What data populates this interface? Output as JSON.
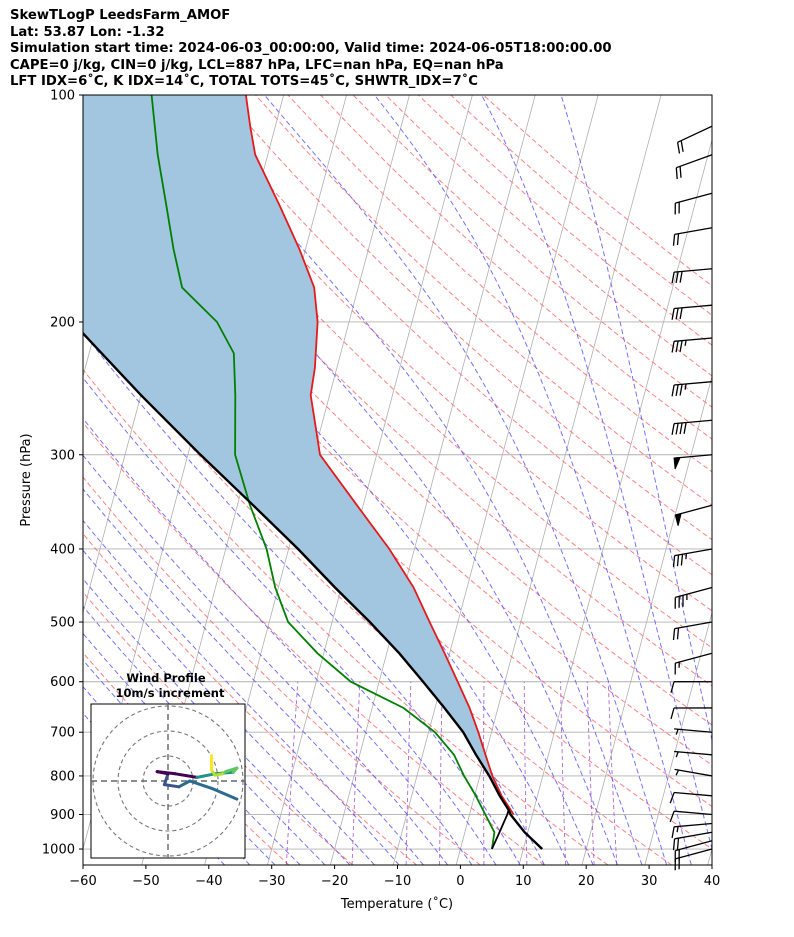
{
  "header": {
    "line1": "SkewTLogP LeedsFarm_AMOF",
    "line2": "Lat: 53.87   Lon: -1.32",
    "line3": "Simulation start time: 2024-06-03_00:00:00, Valid time: 2024-06-05T18:00:00.00",
    "line4": "CAPE=0 j/kg, CIN=0 j/kg, LCL=887 hPa, LFC=nan hPa, EQ=nan hPa",
    "line5": "LFT IDX=6˚C, K IDX=14˚C, TOTAL TOTS=45˚C, SHWTR_IDX=7˚C"
  },
  "chart_data": {
    "type": "skew-t",
    "xlabel": "Temperature (˚C)",
    "ylabel": "Pressure (hPa)",
    "xlim": [
      -60,
      40
    ],
    "ylim": [
      1050,
      100
    ],
    "x_ticks": [
      -60,
      -50,
      -40,
      -30,
      -20,
      -10,
      0,
      10,
      20,
      30,
      40
    ],
    "x_tick_labels": [
      "−60",
      "−50",
      "−40",
      "−30",
      "−20",
      "−10",
      "0",
      "10",
      "20",
      "30",
      "40"
    ],
    "y_ticks": [
      1000,
      900,
      800,
      700,
      600,
      500,
      400,
      300,
      200,
      100
    ],
    "y_tick_labels": [
      "1000",
      "900",
      "800",
      "700",
      "600",
      "500",
      "400",
      "300",
      "200",
      "100"
    ],
    "grid": true,
    "series": [
      {
        "name": "",
        "color": "#e41a1c",
        "values": [
          {
            "p": 900,
            "t": 7.0
          },
          {
            "p": 850,
            "t": 4.3
          },
          {
            "p": 800,
            "t": 2.0
          },
          {
            "p": 750,
            "t": 0.0
          },
          {
            "p": 700,
            "t": -2.1
          },
          {
            "p": 650,
            "t": -4.5
          },
          {
            "p": 600,
            "t": -7.5
          },
          {
            "p": 550,
            "t": -10.8
          },
          {
            "p": 500,
            "t": -14.5
          },
          {
            "p": 450,
            "t": -18.5
          },
          {
            "p": 400,
            "t": -24.0
          },
          {
            "p": 350,
            "t": -31.0
          },
          {
            "p": 300,
            "t": -39.0
          },
          {
            "p": 250,
            "t": -43.0
          },
          {
            "p": 230,
            "t": -43.5
          },
          {
            "p": 200,
            "t": -45.0
          },
          {
            "p": 180,
            "t": -47.0
          },
          {
            "p": 160,
            "t": -51.0
          },
          {
            "p": 140,
            "t": -56.0
          },
          {
            "p": 120,
            "t": -62.0
          },
          {
            "p": 110,
            "t": -64.0
          },
          {
            "p": 100,
            "t": -66.0
          }
        ]
      },
      {
        "name": "",
        "color": "#008000",
        "values": [
          {
            "p": 1000,
            "t": 5.0
          },
          {
            "p": 950,
            "t": 4.7
          },
          {
            "p": 900,
            "t": 2.5
          },
          {
            "p": 850,
            "t": 0.2
          },
          {
            "p": 800,
            "t": -2.5
          },
          {
            "p": 750,
            "t": -5.0
          },
          {
            "p": 700,
            "t": -9.0
          },
          {
            "p": 650,
            "t": -15.0
          },
          {
            "p": 600,
            "t": -24.5
          },
          {
            "p": 550,
            "t": -31.0
          },
          {
            "p": 500,
            "t": -37.0
          },
          {
            "p": 450,
            "t": -40.5
          },
          {
            "p": 400,
            "t": -43.5
          },
          {
            "p": 350,
            "t": -48.0
          },
          {
            "p": 300,
            "t": -52.5
          },
          {
            "p": 250,
            "t": -55.0
          },
          {
            "p": 220,
            "t": -57.0
          },
          {
            "p": 200,
            "t": -61.0
          },
          {
            "p": 180,
            "t": -68.0
          },
          {
            "p": 160,
            "t": -71.0
          },
          {
            "p": 140,
            "t": -74.0
          },
          {
            "p": 120,
            "t": -77.5
          },
          {
            "p": 100,
            "t": -81.0
          }
        ]
      },
      {
        "name": "",
        "color": "#000000",
        "values": [
          {
            "p": 1000,
            "t": 13.0
          },
          {
            "p": 950,
            "t": 9.5
          },
          {
            "p": 900,
            "t": 6.5
          },
          {
            "p": 887,
            "t": 6.0
          },
          {
            "p": 850,
            "t": 4.0
          },
          {
            "p": 800,
            "t": 1.5
          },
          {
            "p": 750,
            "t": -1.5
          },
          {
            "p": 700,
            "t": -4.5
          },
          {
            "p": 650,
            "t": -8.5
          },
          {
            "p": 600,
            "t": -13.0
          },
          {
            "p": 550,
            "t": -18.0
          },
          {
            "p": 500,
            "t": -24.0
          },
          {
            "p": 450,
            "t": -31.0
          },
          {
            "p": 400,
            "t": -38.5
          },
          {
            "p": 350,
            "t": -47.5
          },
          {
            "p": 300,
            "t": -58.0
          },
          {
            "p": 250,
            "t": -70.0
          },
          {
            "p": 200,
            "t": -84.0
          },
          {
            "p": 150,
            "t": -102.0
          },
          {
            "p": 120,
            "t": -117.0
          },
          {
            "p": 100,
            "t": -128.0
          }
        ]
      },
      {
        "name": "",
        "color": "#000000",
        "values": [
          {
            "p": 1000,
            "t": 5.0
          },
          {
            "p": 950,
            "t": 5.5
          },
          {
            "p": 900,
            "t": 6.0
          },
          {
            "p": 887,
            "t": 6.0
          }
        ]
      }
    ],
    "shaded_region": {
      "color": "#a3c6e0",
      "between": [
        "red profile",
        "black parcel"
      ]
    },
    "wind_barbs": [
      {
        "p": 1000,
        "speed_kt": 20,
        "dir_deg": 255
      },
      {
        "p": 975,
        "speed_kt": 20,
        "dir_deg": 255
      },
      {
        "p": 950,
        "speed_kt": 20,
        "dir_deg": 260
      },
      {
        "p": 925,
        "speed_kt": 15,
        "dir_deg": 265
      },
      {
        "p": 900,
        "speed_kt": 10,
        "dir_deg": 275
      },
      {
        "p": 850,
        "speed_kt": 10,
        "dir_deg": 275
      },
      {
        "p": 800,
        "speed_kt": 5,
        "dir_deg": 280
      },
      {
        "p": 750,
        "speed_kt": 5,
        "dir_deg": 275
      },
      {
        "p": 700,
        "speed_kt": 5,
        "dir_deg": 275
      },
      {
        "p": 650,
        "speed_kt": 10,
        "dir_deg": 270
      },
      {
        "p": 600,
        "speed_kt": 10,
        "dir_deg": 270
      },
      {
        "p": 550,
        "speed_kt": 15,
        "dir_deg": 255
      },
      {
        "p": 500,
        "speed_kt": 20,
        "dir_deg": 260
      },
      {
        "p": 450,
        "speed_kt": 35,
        "dir_deg": 255
      },
      {
        "p": 400,
        "speed_kt": 35,
        "dir_deg": 260
      },
      {
        "p": 350,
        "speed_kt": 50,
        "dir_deg": 255
      },
      {
        "p": 300,
        "speed_kt": 50,
        "dir_deg": 265
      },
      {
        "p": 270,
        "speed_kt": 40,
        "dir_deg": 265
      },
      {
        "p": 240,
        "speed_kt": 35,
        "dir_deg": 265
      },
      {
        "p": 210,
        "speed_kt": 35,
        "dir_deg": 265
      },
      {
        "p": 190,
        "speed_kt": 30,
        "dir_deg": 265
      },
      {
        "p": 170,
        "speed_kt": 30,
        "dir_deg": 265
      },
      {
        "p": 150,
        "speed_kt": 20,
        "dir_deg": 260
      },
      {
        "p": 135,
        "speed_kt": 20,
        "dir_deg": 255
      },
      {
        "p": 120,
        "speed_kt": 20,
        "dir_deg": 250
      },
      {
        "p": 110,
        "speed_kt": 20,
        "dir_deg": 245
      }
    ],
    "hodograph": {
      "title": "Wind Profile",
      "subtitle": "10m/s increment",
      "ring_increment_ms": 10,
      "rings": 3,
      "points_ms": [
        {
          "u": 9.5,
          "v": -2.5
        },
        {
          "u": 6.0,
          "v": -1.0
        },
        {
          "u": 3.0,
          "v": 0.0
        },
        {
          "u": 1.5,
          "v": -0.8
        },
        {
          "u": -0.5,
          "v": -0.5
        },
        {
          "u": 0.0,
          "v": 1.0
        },
        {
          "u": -1.5,
          "v": 1.3
        },
        {
          "u": 1.0,
          "v": 1.0
        },
        {
          "u": 4.0,
          "v": 0.5
        },
        {
          "u": 6.5,
          "v": 1.0
        },
        {
          "u": 9.0,
          "v": 1.2
        },
        {
          "u": 9.5,
          "v": 1.8
        },
        {
          "u": 8.0,
          "v": 1.3
        },
        {
          "u": 7.5,
          "v": 1.0
        },
        {
          "u": 6.5,
          "v": 0.8
        },
        {
          "u": 6.0,
          "v": 1.5
        },
        {
          "u": 6.0,
          "v": 2.5
        },
        {
          "u": 6.0,
          "v": 3.5
        }
      ],
      "colors": [
        "#2c6b91",
        "#3b528b",
        "#440154",
        "#21918c",
        "#5ec962",
        "#b5de2b",
        "#fde725"
      ]
    }
  }
}
